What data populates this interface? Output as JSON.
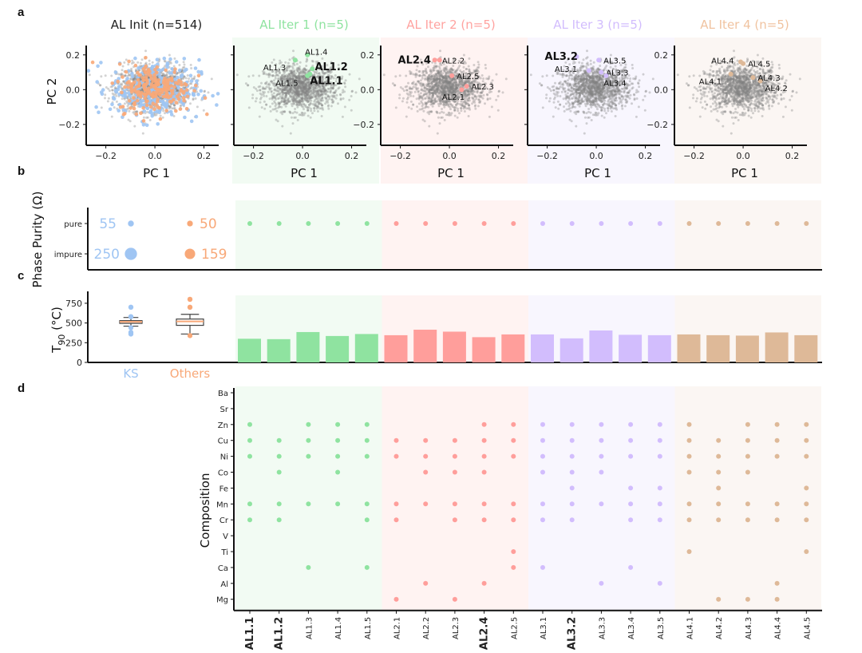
{
  "panel_letters": {
    "a": "a",
    "b": "b",
    "c": "c",
    "d": "d"
  },
  "colors": {
    "KS": "#9fc5f3",
    "Others": "#f8a878",
    "background_points": "#808080",
    "iter": [
      "#8fe3a0",
      "#ff9e9b",
      "#d2bdfd",
      "#deb998"
    ],
    "iter_bg": [
      "#f2fbf3",
      "#fff3f2",
      "#f8f6fe",
      "#fbf6f3"
    ],
    "iter_title": [
      "#8fe3a0",
      "#ffa3a0",
      "#d2bdfd",
      "#f0c3a0"
    ]
  },
  "chart_data": [
    {
      "id": "a",
      "type": "scatter",
      "title_init": "AL Init (n=514)",
      "titles_iter": [
        "AL Iter 1 (n=5)",
        "AL Iter 2 (n=5)",
        "AL Iter 3 (n=5)",
        "AL Iter 4 (n=5)"
      ],
      "xlabel": "PC 1",
      "ylabel": "PC 2",
      "xlim": [
        -0.28,
        0.26
      ],
      "ylim": [
        -0.32,
        0.3
      ],
      "xticks": [
        "-0.2",
        "0.0",
        "0.2"
      ],
      "xtick_values": [
        -0.2,
        0.0,
        0.2
      ],
      "yticks": [
        "0.2",
        "0.0",
        "-0.2"
      ],
      "ytick_values": [
        0.2,
        0.0,
        -0.2
      ],
      "iter_points": [
        [
          {
            "label": "AL1.1",
            "x": 0.02,
            "y": 0.08,
            "bold": true,
            "lx": 0.03,
            "ly": 0.05
          },
          {
            "label": "AL1.2",
            "x": 0.04,
            "y": 0.12,
            "bold": true,
            "lx": 0.05,
            "ly": 0.13
          },
          {
            "label": "AL1.3",
            "x": -0.03,
            "y": 0.17,
            "bold": false,
            "lx": -0.16,
            "ly": 0.13
          },
          {
            "label": "AL1.4",
            "x": 0.02,
            "y": 0.2,
            "bold": false,
            "lx": 0.01,
            "ly": 0.22
          },
          {
            "label": "AL1.5",
            "x": 0.03,
            "y": 0.09,
            "bold": false,
            "lx": -0.11,
            "ly": 0.04
          }
        ],
        [
          {
            "label": "AL2.1",
            "x": 0.05,
            "y": 0.0,
            "bold": false,
            "lx": -0.03,
            "ly": -0.04
          },
          {
            "label": "AL2.2",
            "x": -0.04,
            "y": 0.17,
            "bold": false,
            "lx": -0.03,
            "ly": 0.17
          },
          {
            "label": "AL2.3",
            "x": 0.07,
            "y": 0.02,
            "bold": false,
            "lx": 0.07,
            "ly": 0.02
          },
          {
            "label": "AL2.4",
            "x": -0.06,
            "y": 0.17,
            "bold": true,
            "lx": -0.21,
            "ly": 0.17
          },
          {
            "label": "AL2.5",
            "x": 0.01,
            "y": 0.08,
            "bold": false,
            "lx": 0.01,
            "ly": 0.08
          }
        ],
        [
          {
            "label": "AL3.1",
            "x": -0.03,
            "y": 0.11,
            "bold": false,
            "lx": -0.17,
            "ly": 0.12
          },
          {
            "label": "AL3.2",
            "x": -0.08,
            "y": 0.19,
            "bold": true,
            "lx": -0.21,
            "ly": 0.19
          },
          {
            "label": "AL3.3",
            "x": 0.02,
            "y": 0.1,
            "bold": false,
            "lx": 0.02,
            "ly": 0.1
          },
          {
            "label": "AL3.4",
            "x": 0.04,
            "y": 0.08,
            "bold": false,
            "lx": 0.03,
            "ly": 0.04
          },
          {
            "label": "AL3.5",
            "x": 0.01,
            "y": 0.17,
            "bold": false,
            "lx": 0.01,
            "ly": 0.17
          }
        ],
        [
          {
            "label": "AL4.1",
            "x": -0.05,
            "y": 0.09,
            "bold": false,
            "lx": -0.18,
            "ly": 0.05
          },
          {
            "label": "AL4.2",
            "x": 0.07,
            "y": 0.05,
            "bold": false,
            "lx": 0.07,
            "ly": 0.01
          },
          {
            "label": "AL4.3",
            "x": 0.04,
            "y": 0.07,
            "bold": false,
            "lx": 0.04,
            "ly": 0.07
          },
          {
            "label": "AL4.4",
            "x": -0.01,
            "y": 0.16,
            "bold": false,
            "lx": -0.13,
            "ly": 0.17
          },
          {
            "label": "AL4.5",
            "x": 0.0,
            "y": 0.15,
            "bold": false,
            "lx": 0.0,
            "ly": 0.15
          }
        ]
      ],
      "init_series": [
        {
          "name": "KS",
          "count": 305
        },
        {
          "name": "Others",
          "count": 209
        }
      ]
    },
    {
      "id": "b",
      "type": "scatter",
      "ylabel": "Phase Purity (Ω)",
      "yticks": [
        "pure",
        "impure"
      ],
      "init_groups": [
        {
          "name": "KS",
          "pure": 55,
          "impure": 250
        },
        {
          "name": "Others",
          "pure": 50,
          "impure": 159
        }
      ],
      "iter_purity": [
        "pure",
        "pure",
        "pure",
        "pure",
        "pure",
        "pure",
        "pure",
        "pure",
        "pure",
        "pure",
        "pure",
        "pure",
        "pure",
        "pure",
        "pure",
        "pure",
        "pure",
        "pure",
        "pure",
        "pure"
      ]
    },
    {
      "id": "c",
      "type": "bar",
      "ylabel_main": "T",
      "ylabel_sub": "90",
      "ylabel_unit": " (°C)",
      "ylim": [
        0,
        850
      ],
      "yticks": [
        "750",
        "500",
        "250",
        "0"
      ],
      "ytick_values": [
        750,
        500,
        250,
        0
      ],
      "box_categories": [
        "KS",
        "Others"
      ],
      "boxes": [
        {
          "name": "KS",
          "q1": 495,
          "median": 515,
          "q3": 530,
          "whisker_low": 460,
          "whisker_high": 570,
          "outliers": [
            700,
            580,
            440,
            380,
            360
          ]
        },
        {
          "name": "Others",
          "q1": 470,
          "median": 520,
          "q3": 550,
          "whisker_low": 360,
          "whisker_high": 610,
          "outliers": [
            800,
            700,
            340
          ]
        }
      ],
      "categories": [
        "AL1.1",
        "AL1.2",
        "AL1.3",
        "AL1.4",
        "AL1.5",
        "AL2.1",
        "AL2.2",
        "AL2.3",
        "AL2.4",
        "AL2.5",
        "AL3.1",
        "AL3.2",
        "AL3.3",
        "AL3.4",
        "AL3.5",
        "AL4.1",
        "AL4.2",
        "AL4.3",
        "AL4.4",
        "AL4.5"
      ],
      "values": [
        300,
        295,
        385,
        335,
        360,
        345,
        415,
        390,
        320,
        355,
        355,
        305,
        405,
        350,
        345,
        355,
        345,
        340,
        380,
        345
      ]
    },
    {
      "id": "d",
      "type": "scatter",
      "ylabel": "Composition",
      "elements": [
        "Ba",
        "Sr",
        "Zn",
        "Cu",
        "Ni",
        "Co",
        "Fe",
        "Mn",
        "Cr",
        "V",
        "Ti",
        "Ca",
        "Al",
        "Mg"
      ],
      "samples": [
        "AL1.1",
        "AL1.2",
        "AL1.3",
        "AL1.4",
        "AL1.5",
        "AL2.1",
        "AL2.2",
        "AL2.3",
        "AL2.4",
        "AL2.5",
        "AL3.1",
        "AL3.2",
        "AL3.3",
        "AL3.4",
        "AL3.5",
        "AL4.1",
        "AL4.2",
        "AL4.3",
        "AL4.4",
        "AL4.5"
      ],
      "bold_samples": [
        "AL1.1",
        "AL1.2",
        "AL2.4",
        "AL3.2"
      ],
      "composition": {
        "AL1.1": [
          "Zn",
          "Cu",
          "Ni",
          "Mn",
          "Cr"
        ],
        "AL1.2": [
          "Cu",
          "Ni",
          "Co",
          "Mn",
          "Cr"
        ],
        "AL1.3": [
          "Zn",
          "Cu",
          "Ni",
          "Mn",
          "Ca"
        ],
        "AL1.4": [
          "Zn",
          "Cu",
          "Ni",
          "Co",
          "Mn"
        ],
        "AL1.5": [
          "Zn",
          "Cu",
          "Ni",
          "Mn",
          "Cr",
          "Ca"
        ],
        "AL2.1": [
          "Cu",
          "Ni",
          "Mn",
          "Cr",
          "Mg"
        ],
        "AL2.2": [
          "Cu",
          "Ni",
          "Co",
          "Mn",
          "Al"
        ],
        "AL2.3": [
          "Cu",
          "Ni",
          "Co",
          "Mn",
          "Cr",
          "Mg"
        ],
        "AL2.4": [
          "Zn",
          "Cu",
          "Ni",
          "Co",
          "Mn",
          "Cr",
          "Al"
        ],
        "AL2.5": [
          "Zn",
          "Cu",
          "Ni",
          "Mn",
          "Cr",
          "Ti",
          "Ca"
        ],
        "AL3.1": [
          "Zn",
          "Cu",
          "Ni",
          "Co",
          "Mn",
          "Cr",
          "Ca"
        ],
        "AL3.2": [
          "Zn",
          "Cu",
          "Ni",
          "Co",
          "Fe",
          "Mn",
          "Cr"
        ],
        "AL3.3": [
          "Zn",
          "Cu",
          "Ni",
          "Co",
          "Mn",
          "Al"
        ],
        "AL3.4": [
          "Zn",
          "Cu",
          "Ni",
          "Fe",
          "Mn",
          "Cr",
          "Ca"
        ],
        "AL3.5": [
          "Zn",
          "Cu",
          "Ni",
          "Fe",
          "Mn",
          "Cr",
          "Al"
        ],
        "AL4.1": [
          "Zn",
          "Cu",
          "Ni",
          "Co",
          "Mn",
          "Cr",
          "Ti"
        ],
        "AL4.2": [
          "Cu",
          "Ni",
          "Co",
          "Fe",
          "Mn",
          "Cr",
          "Mg"
        ],
        "AL4.3": [
          "Zn",
          "Cu",
          "Ni",
          "Co",
          "Mn",
          "Cr",
          "Mg"
        ],
        "AL4.4": [
          "Zn",
          "Cu",
          "Ni",
          "Mn",
          "Cr",
          "Al",
          "Mg"
        ],
        "AL4.5": [
          "Zn",
          "Cu",
          "Ni",
          "Fe",
          "Mn",
          "Cr",
          "Ti"
        ]
      }
    }
  ]
}
